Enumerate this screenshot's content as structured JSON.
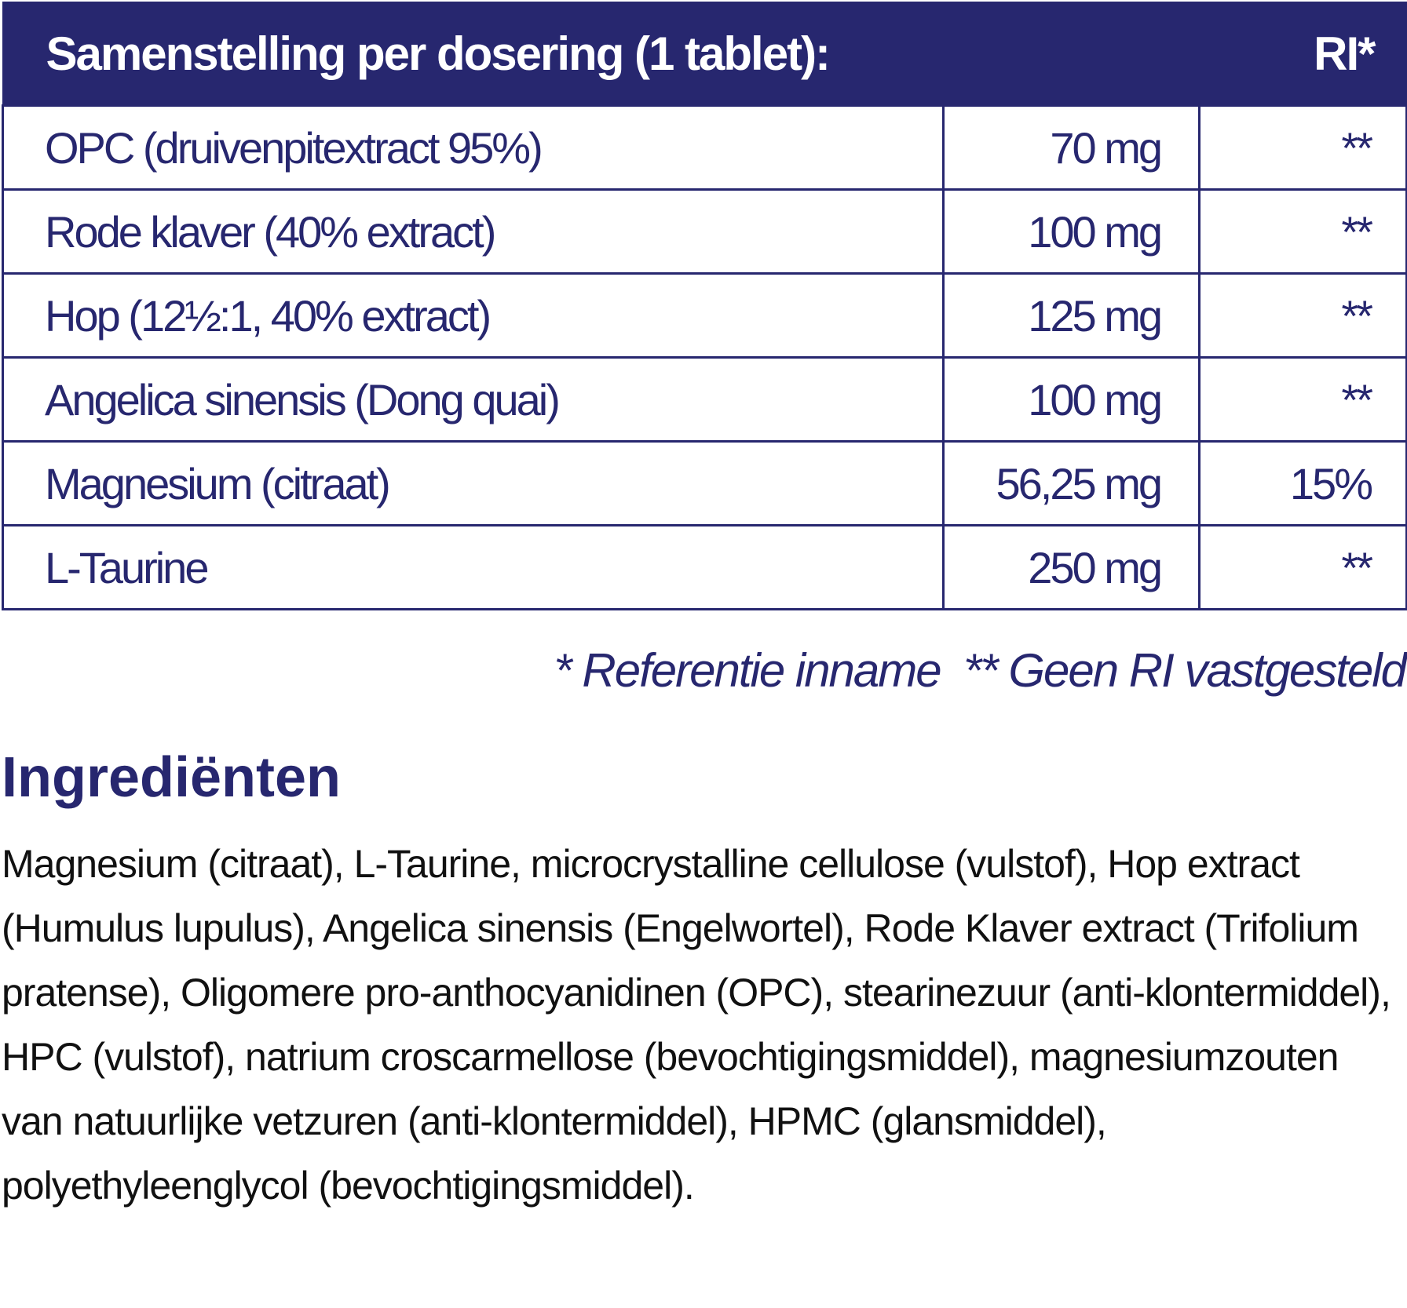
{
  "table": {
    "header": [
      "Samenstelling per dosering (1 tablet):",
      "RI*"
    ],
    "rows": [
      [
        "OPC (druivenpitextract 95%)",
        "70 mg",
        "**"
      ],
      [
        "Rode klaver (40% extract)",
        "100 mg",
        "**"
      ],
      [
        "Hop (12½:1, 40% extract)",
        "125 mg",
        "**"
      ],
      [
        "Angelica sinensis (Dong quai)",
        "100 mg",
        "**"
      ],
      [
        "Magnesium (citraat)",
        "56,25 mg",
        "15%"
      ],
      [
        "L-Taurine",
        "250 mg",
        "**"
      ]
    ]
  },
  "footnote": "* Referentie inname  ** Geen RI vastgesteld",
  "ingredients": {
    "title": "Ingrediënten",
    "text": "Magnesium (citraat), L-Taurine, microcrystalline cellulose (vulstof), Hop extract (Humulus lupulus), Angelica sinensis (Engelwortel), Rode Klaver extract (Trifolium pratense), Oligomere pro-anthocyanidinen (OPC), stearinezuur (anti-klontermiddel), HPC (vulstof), natrium croscarmellose (bevochtigingsmiddel), magnesiumzouten van natuurlijke vetzuren (anti-klontermiddel), HPMC (glansmiddel), polyethyleenglycol (bevochtigingsmiddel)."
  }
}
